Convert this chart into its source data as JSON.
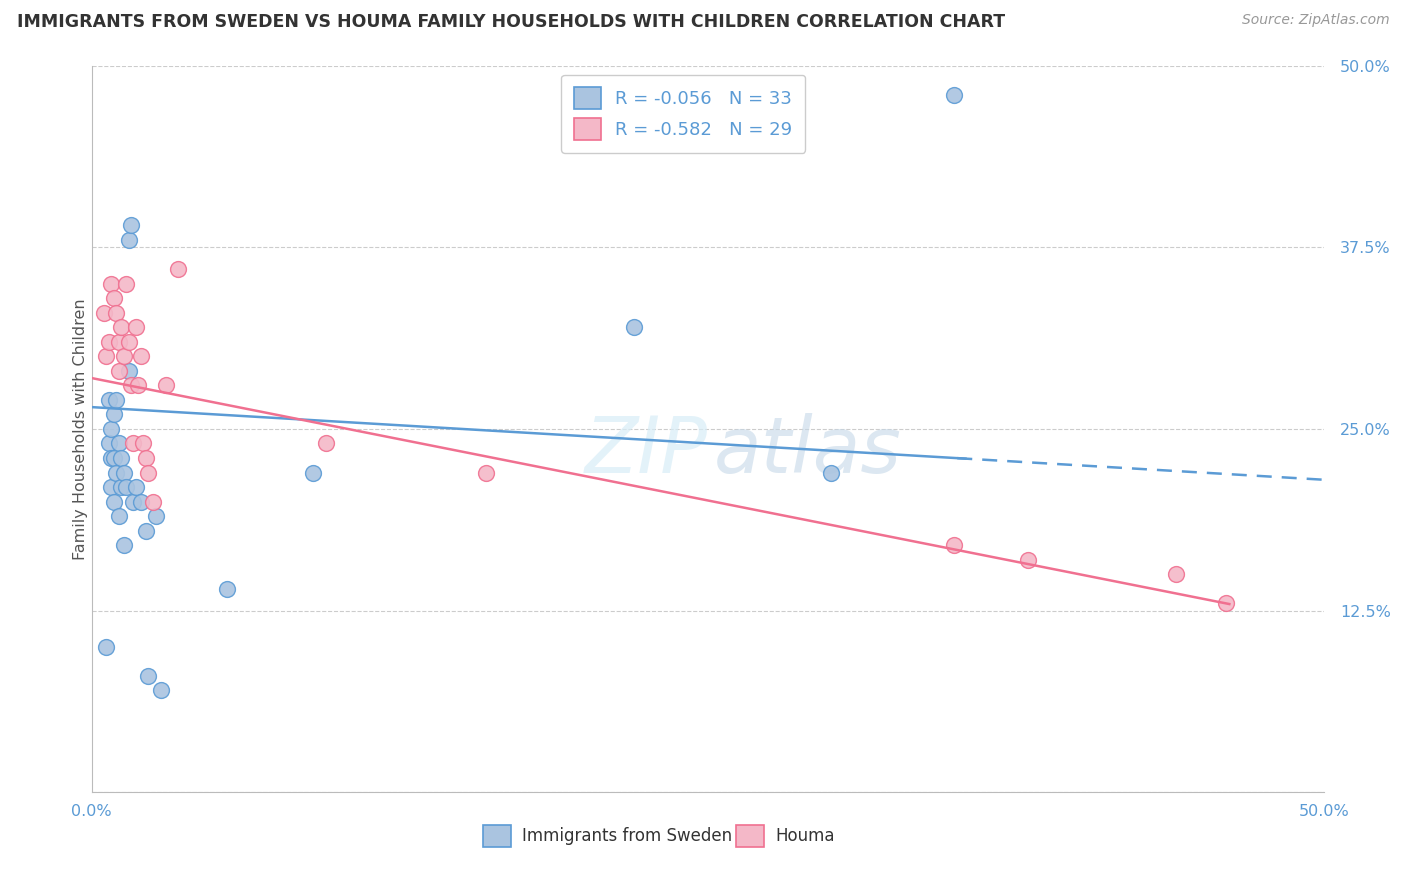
{
  "title": "IMMIGRANTS FROM SWEDEN VS HOUMA FAMILY HOUSEHOLDS WITH CHILDREN CORRELATION CHART",
  "source": "Source: ZipAtlas.com",
  "ylabel": "Family Households with Children",
  "xlabel_legend1": "Immigrants from Sweden",
  "xlabel_legend2": "Houma",
  "xmin": 0.0,
  "xmax": 0.5,
  "ymin": 0.0,
  "ymax": 0.5,
  "xtick_positions": [
    0.0,
    0.1,
    0.2,
    0.3,
    0.4,
    0.5
  ],
  "xtick_labels": [
    "0.0%",
    "",
    "",
    "",
    "",
    "50.0%"
  ],
  "ytick_positions": [
    0.0,
    0.125,
    0.25,
    0.375,
    0.5
  ],
  "ytick_labels": [
    "",
    "12.5%",
    "25.0%",
    "37.5%",
    "50.0%"
  ],
  "legend_r1": "-0.056",
  "legend_n1": "33",
  "legend_r2": "-0.582",
  "legend_n2": "29",
  "color_blue_fill": "#aac4e0",
  "color_blue_edge": "#5b9bd5",
  "color_pink_fill": "#f4b8c8",
  "color_pink_edge": "#f07090",
  "line_blue": "#5b9bd5",
  "line_pink": "#f07090",
  "tick_color": "#5b9bd5",
  "watermark_zip": "ZIP",
  "watermark_atlas": "atlas",
  "blue_x": [
    0.006,
    0.007,
    0.007,
    0.008,
    0.008,
    0.008,
    0.009,
    0.009,
    0.009,
    0.01,
    0.01,
    0.011,
    0.011,
    0.012,
    0.012,
    0.013,
    0.013,
    0.014,
    0.015,
    0.015,
    0.016,
    0.017,
    0.018,
    0.02,
    0.022,
    0.023,
    0.026,
    0.028,
    0.055,
    0.09,
    0.22,
    0.3,
    0.35
  ],
  "blue_y": [
    0.1,
    0.27,
    0.24,
    0.25,
    0.23,
    0.21,
    0.26,
    0.23,
    0.2,
    0.27,
    0.22,
    0.24,
    0.19,
    0.23,
    0.21,
    0.22,
    0.17,
    0.21,
    0.38,
    0.29,
    0.39,
    0.2,
    0.21,
    0.2,
    0.18,
    0.08,
    0.19,
    0.07,
    0.14,
    0.22,
    0.32,
    0.22,
    0.48
  ],
  "pink_x": [
    0.005,
    0.006,
    0.007,
    0.008,
    0.009,
    0.01,
    0.011,
    0.011,
    0.012,
    0.013,
    0.014,
    0.015,
    0.016,
    0.017,
    0.018,
    0.019,
    0.02,
    0.021,
    0.022,
    0.023,
    0.025,
    0.03,
    0.035,
    0.095,
    0.16,
    0.35,
    0.38,
    0.44,
    0.46
  ],
  "pink_y": [
    0.33,
    0.3,
    0.31,
    0.35,
    0.34,
    0.33,
    0.31,
    0.29,
    0.32,
    0.3,
    0.35,
    0.31,
    0.28,
    0.24,
    0.32,
    0.28,
    0.3,
    0.24,
    0.23,
    0.22,
    0.2,
    0.28,
    0.36,
    0.24,
    0.22,
    0.17,
    0.16,
    0.15,
    0.13
  ]
}
